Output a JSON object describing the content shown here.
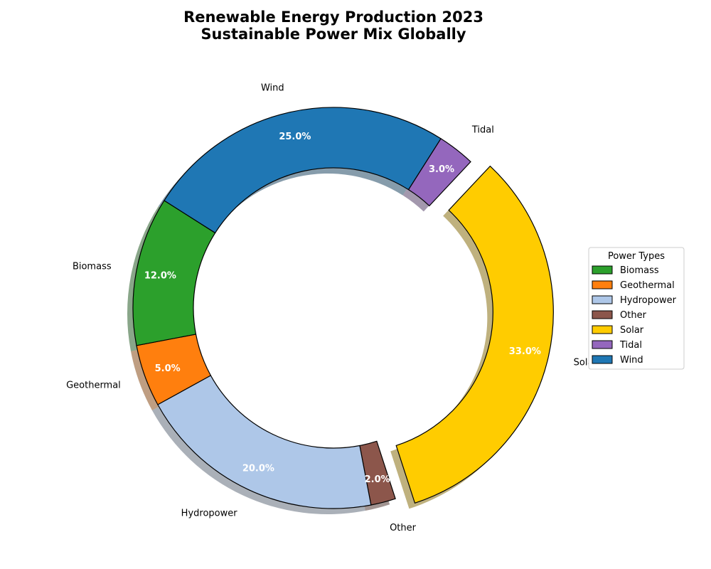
{
  "chart_data": {
    "type": "pie",
    "title_line1": "Renewable Energy Production 2023",
    "title_line2": "Sustainable Power Mix Globally",
    "donut": true,
    "shadow": true,
    "legend": {
      "title": "Power Types",
      "placement": "right",
      "entries": [
        "Biomass",
        "Geothermal",
        "Hydropower",
        "Other",
        "Solar",
        "Tidal",
        "Wind"
      ]
    },
    "slices": [
      {
        "label": "Solar",
        "value": 33.0,
        "pct_text": "33.0%",
        "color": "#ffcc00",
        "exploded": true
      },
      {
        "label": "Other",
        "value": 2.0,
        "pct_text": "2.0%",
        "color": "#8c564b",
        "exploded": false
      },
      {
        "label": "Hydropower",
        "value": 20.0,
        "pct_text": "20.0%",
        "color": "#aec7e8",
        "exploded": false
      },
      {
        "label": "Geothermal",
        "value": 5.0,
        "pct_text": "5.0%",
        "color": "#ff7f0e",
        "exploded": false
      },
      {
        "label": "Biomass",
        "value": 12.0,
        "pct_text": "12.0%",
        "color": "#2ca02c",
        "exploded": false
      },
      {
        "label": "Wind",
        "value": 25.0,
        "pct_text": "25.0%",
        "color": "#1f77b4",
        "exploded": false
      },
      {
        "label": "Tidal",
        "value": 3.0,
        "pct_text": "3.0%",
        "color": "#9467bd",
        "exploded": false
      }
    ]
  }
}
